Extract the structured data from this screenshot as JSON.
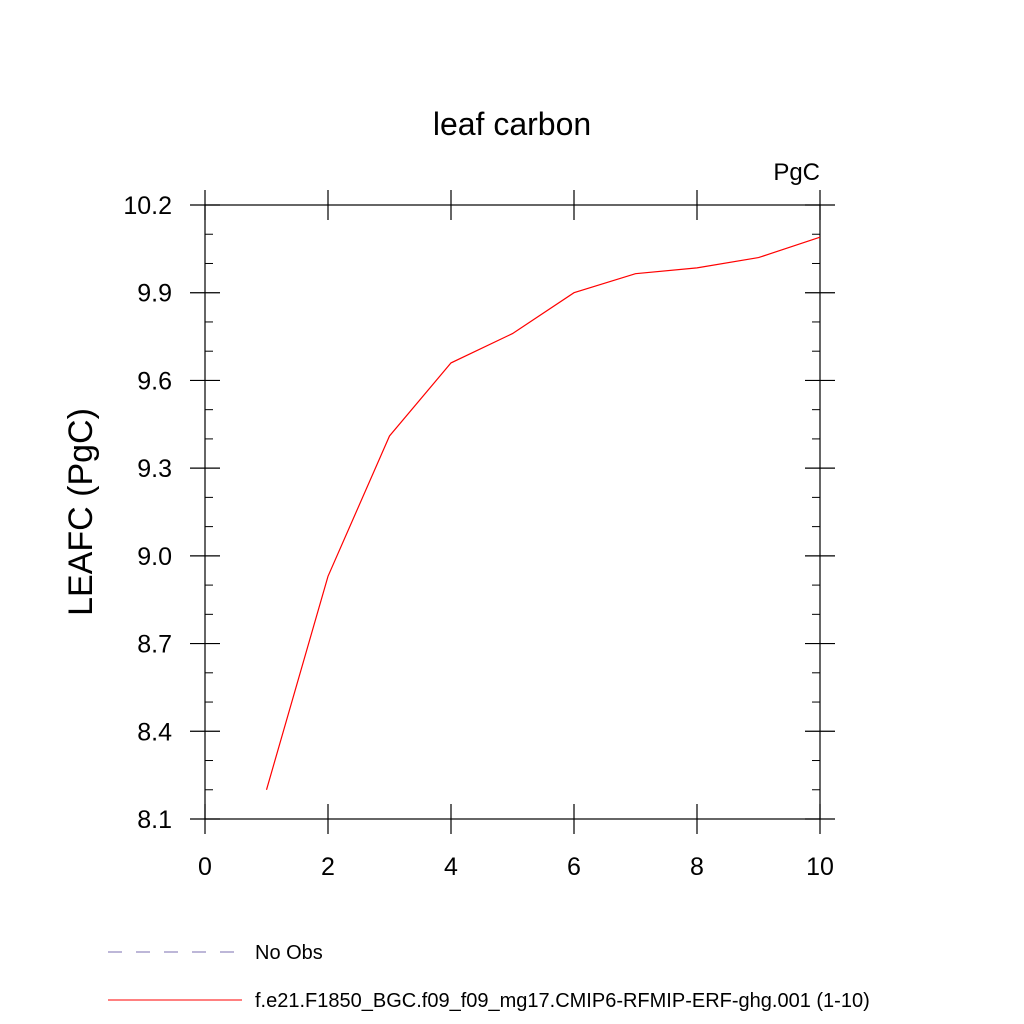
{
  "chart_data": {
    "type": "line",
    "title": "leaf carbon",
    "units_label": "PgC",
    "xlabel": "",
    "ylabel": "LEAFC  (PgC)",
    "xlim": [
      0,
      10
    ],
    "ylim": [
      8.1,
      10.2
    ],
    "x_ticks": [
      0,
      2,
      4,
      6,
      8,
      10
    ],
    "x_tick_labels": [
      "0",
      "2",
      "4",
      "6",
      "8",
      "10"
    ],
    "y_ticks": [
      8.1,
      8.4,
      8.7,
      9.0,
      9.3,
      9.6,
      9.9,
      10.2
    ],
    "y_tick_labels": [
      "8.1",
      "8.4",
      "8.7",
      "9.0",
      "9.3",
      "9.6",
      "9.9",
      "10.2"
    ],
    "grid": false,
    "legend_position": "bottom",
    "series": [
      {
        "name": "No Obs",
        "color": "#7b6fb0",
        "line_style": "dashed",
        "x": [],
        "y": []
      },
      {
        "name": "f.e21.F1850_BGC.f09_f09_mg17.CMIP6-RFMIP-ERF-ghg.001 (1-10)",
        "color": "#ff0000",
        "line_style": "solid",
        "x": [
          1,
          2,
          3,
          4,
          5,
          6,
          7,
          8,
          9,
          10
        ],
        "y": [
          8.2,
          8.93,
          9.41,
          9.66,
          9.76,
          9.9,
          9.965,
          9.985,
          10.02,
          10.09
        ]
      }
    ]
  }
}
